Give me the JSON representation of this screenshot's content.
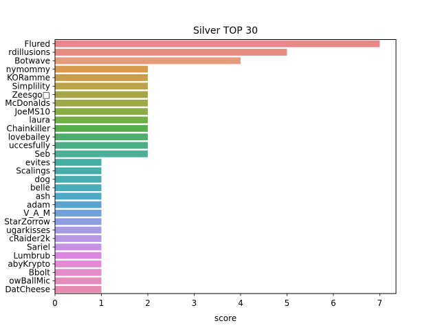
{
  "chart_data": {
    "type": "bar",
    "orientation": "horizontal",
    "title": "Silver TOP 30",
    "xlabel": "score",
    "ylabel": "",
    "xlim": [
      0,
      7.35
    ],
    "xticks": [
      0,
      1,
      2,
      3,
      4,
      5,
      6,
      7
    ],
    "grid": false,
    "categories": [
      "Flured",
      "rdillusions",
      "Botwave",
      "nymommy",
      "KORamme",
      "Simplility",
      "Zeesgo□",
      "McDonalds",
      "JoeMS10",
      "laura",
      "Chainkiller",
      "lovebailey",
      "uccesfully",
      "Seb",
      "evites",
      "Scalings",
      "dog",
      "belle",
      "ash",
      "adam",
      "V_A_M",
      "StarZorrow",
      "ugarkisses",
      "cRaider2k",
      "Sariel",
      "Lumbrub",
      "abyKrypto",
      "Bbolt",
      "owBallMic",
      "DatCheese"
    ],
    "values": [
      7,
      5,
      4,
      2,
      2,
      2,
      2,
      2,
      2,
      2,
      2,
      2,
      2,
      2,
      1,
      1,
      1,
      1,
      1,
      1,
      1,
      1,
      1,
      1,
      1,
      1,
      1,
      1,
      1,
      1
    ],
    "colors": [
      "#e8868a",
      "#e78b80",
      "#e69a7c",
      "#d89a4d",
      "#c99e4a",
      "#baa34b",
      "#a8a548",
      "#9ca944",
      "#8aad46",
      "#73b043",
      "#56b049",
      "#4daf6e",
      "#4baf86",
      "#49af97",
      "#44aea3",
      "#46aeaa",
      "#48adb2",
      "#4aabba",
      "#4da9c4",
      "#59a5cf",
      "#6fa2da",
      "#8d9ee0",
      "#a59ce5",
      "#b797e6",
      "#c791e6",
      "#d988e0",
      "#e488d5",
      "#e38cc8",
      "#e48cbb",
      "#e58ab0"
    ]
  }
}
